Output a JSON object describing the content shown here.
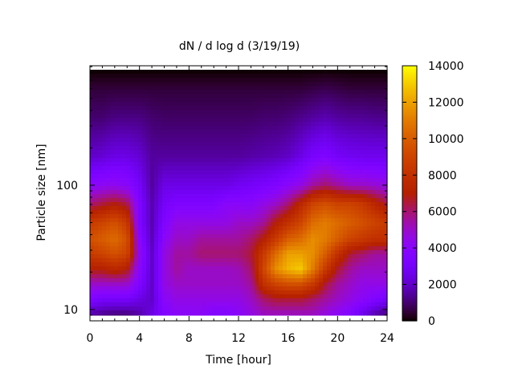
{
  "chart_data": {
    "type": "heatmap",
    "title": "dN / d log d (3/19/19)",
    "xlabel": "Time [hour]",
    "ylabel": "Particle size [nm]",
    "xlim": [
      0,
      24
    ],
    "ylim": [
      8.1,
      915
    ],
    "yscale": "log",
    "x_ticks": [
      "0",
      "4",
      "8",
      "12",
      "16",
      "20",
      "24"
    ],
    "x_tick_values": [
      0,
      4,
      8,
      12,
      16,
      20,
      24
    ],
    "y_ticks": [
      "10",
      "100"
    ],
    "y_tick_values": [
      10,
      100
    ],
    "colorbar": {
      "range": [
        0,
        14000
      ],
      "ticks": [
        "0",
        "2000",
        "4000",
        "6000",
        "8000",
        "10000",
        "12000",
        "14000"
      ],
      "tick_values": [
        0,
        2000,
        4000,
        6000,
        8000,
        10000,
        12000,
        14000
      ],
      "palette": "black-purple-red-yellow"
    },
    "x": [
      0,
      1,
      2,
      3,
      4,
      5,
      6,
      7,
      8,
      9,
      10,
      11,
      12,
      13,
      14,
      15,
      16,
      17,
      18,
      19,
      20,
      21,
      22,
      23,
      24
    ],
    "y": [
      9,
      12,
      16,
      21,
      28,
      37,
      50,
      70,
      100,
      170,
      350,
      600,
      850
    ],
    "z": [
      [
        1500,
        1200,
        1000,
        1000,
        1500,
        2500,
        3500,
        4000,
        4000,
        4000,
        3500,
        3500,
        4000,
        4500,
        5000,
        5000,
        5000,
        5000,
        5000,
        4500,
        4000,
        3500,
        2500,
        1500,
        1000
      ],
      [
        3500,
        3000,
        3000,
        3000,
        2500,
        2000,
        4000,
        4500,
        4500,
        4500,
        4500,
        4500,
        4500,
        5000,
        6000,
        6500,
        6500,
        6500,
        6000,
        5500,
        5000,
        4500,
        4000,
        3500,
        3000
      ],
      [
        5000,
        5000,
        5000,
        5000,
        3500,
        2000,
        4500,
        5000,
        5000,
        5000,
        5000,
        5000,
        5000,
        5500,
        8000,
        9000,
        9500,
        9500,
        8500,
        6500,
        5500,
        5000,
        4500,
        4500,
        4500
      ],
      [
        7000,
        7000,
        7500,
        7000,
        4000,
        2000,
        4500,
        5500,
        5000,
        5000,
        5000,
        5000,
        5200,
        6000,
        9000,
        11500,
        12500,
        13000,
        11000,
        8500,
        6500,
        5500,
        5000,
        5000,
        5000
      ],
      [
        8500,
        9000,
        9500,
        9000,
        4500,
        2000,
        4500,
        5500,
        5500,
        6000,
        6000,
        6000,
        6000,
        6500,
        8500,
        10500,
        12000,
        12000,
        11500,
        10000,
        8000,
        6500,
        6000,
        5500,
        5500
      ],
      [
        9500,
        10000,
        10500,
        9500,
        4000,
        1800,
        4000,
        5000,
        5000,
        5500,
        5500,
        5500,
        5500,
        6000,
        7000,
        8500,
        10000,
        10500,
        11500,
        11000,
        10000,
        9000,
        8500,
        8000,
        8000
      ],
      [
        8500,
        9000,
        9500,
        8500,
        3500,
        1700,
        3500,
        4500,
        4500,
        4500,
        4500,
        4500,
        5000,
        5000,
        5500,
        7000,
        8000,
        9000,
        10500,
        11000,
        10500,
        10000,
        9500,
        9000,
        8500
      ],
      [
        6000,
        6500,
        7000,
        6500,
        3500,
        1700,
        3000,
        3500,
        3500,
        3500,
        3500,
        4000,
        4000,
        4000,
        4500,
        5000,
        6000,
        7500,
        9000,
        9500,
        9000,
        9000,
        8500,
        7500,
        6500
      ],
      [
        4000,
        4200,
        4300,
        4000,
        3000,
        1500,
        2500,
        2500,
        2500,
        2500,
        2500,
        2500,
        2800,
        3000,
        3200,
        3500,
        4000,
        4500,
        5500,
        6000,
        5500,
        5000,
        5000,
        4800,
        4500
      ],
      [
        2000,
        2200,
        2500,
        2500,
        2200,
        1500,
        1500,
        1500,
        1500,
        1500,
        1500,
        1500,
        1500,
        1600,
        1700,
        1800,
        2000,
        2500,
        3200,
        3500,
        3000,
        2800,
        2700,
        2700,
        2700
      ],
      [
        1000,
        1000,
        1200,
        1200,
        1200,
        1000,
        900,
        900,
        900,
        900,
        900,
        900,
        900,
        900,
        1000,
        1000,
        1100,
        1300,
        1500,
        1700,
        1500,
        1400,
        1400,
        1300,
        1300
      ],
      [
        500,
        500,
        500,
        500,
        500,
        500,
        500,
        500,
        500,
        500,
        500,
        500,
        500,
        500,
        500,
        500,
        500,
        500,
        600,
        700,
        600,
        500,
        500,
        500,
        500
      ],
      [
        0,
        0,
        0,
        0,
        0,
        0,
        0,
        0,
        0,
        0,
        0,
        0,
        0,
        0,
        0,
        0,
        0,
        0,
        0,
        0,
        0,
        0,
        0,
        0,
        0
      ]
    ]
  }
}
